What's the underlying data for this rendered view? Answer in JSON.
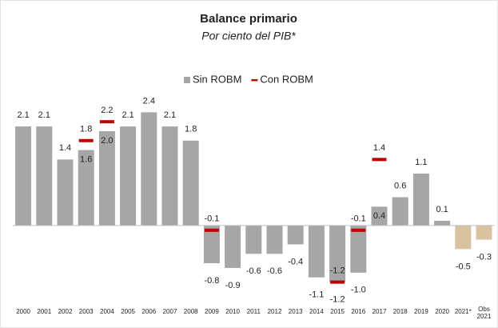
{
  "chart_data": {
    "type": "bar",
    "title": "Balance primario",
    "subtitle": "Por ciento del PIB*",
    "categories": [
      "2000",
      "2001",
      "2002",
      "2003",
      "2004",
      "2005",
      "2006",
      "2007",
      "2008",
      "2009",
      "2010",
      "2011",
      "2012",
      "2013",
      "2014",
      "2015",
      "2016",
      "2017",
      "2018",
      "2019",
      "2020",
      "2021*",
      "Obs 2021"
    ],
    "ylim": [
      -1.8,
      3.0
    ],
    "legend": "top",
    "series": [
      {
        "name": "Sin ROBM",
        "color": "#a6a6a6",
        "colors": [
          "#a6a6a6",
          "#a6a6a6",
          "#a6a6a6",
          "#a6a6a6",
          "#a6a6a6",
          "#a6a6a6",
          "#a6a6a6",
          "#a6a6a6",
          "#a6a6a6",
          "#a6a6a6",
          "#a6a6a6",
          "#a6a6a6",
          "#a6a6a6",
          "#a6a6a6",
          "#a6a6a6",
          "#a6a6a6",
          "#a6a6a6",
          "#a6a6a6",
          "#a6a6a6",
          "#a6a6a6",
          "#a6a6a6",
          "#d8c29f",
          "#d8c29f"
        ],
        "values": [
          2.1,
          2.1,
          1.4,
          1.6,
          2.0,
          2.1,
          2.4,
          2.1,
          1.8,
          -0.8,
          -0.9,
          -0.6,
          -0.6,
          -0.4,
          -1.1,
          -1.2,
          -1.0,
          0.4,
          0.6,
          1.1,
          0.1,
          -0.5,
          -0.3
        ],
        "value_labels": [
          "2.1",
          "2.1",
          "1.4",
          "1.6",
          "2.0",
          "2.1",
          "2.4",
          "2.1",
          "1.8",
          "-0.8",
          "-0.9",
          "-0.6",
          "-0.6",
          "-0.4",
          "-1.1",
          "-1.2",
          "-1.0",
          "0.4",
          "0.6",
          "1.1",
          "0.1",
          "-0.5",
          "-0.3"
        ]
      },
      {
        "name": "Con ROBM",
        "color": "#c00000",
        "marker": "dash",
        "values": [
          null,
          null,
          null,
          1.8,
          2.2,
          null,
          null,
          null,
          null,
          -0.1,
          null,
          null,
          null,
          null,
          null,
          -1.2,
          -0.1,
          1.4,
          null,
          null,
          null,
          null,
          null
        ],
        "value_labels": [
          null,
          null,
          null,
          "1.8",
          "2.2",
          null,
          null,
          null,
          null,
          "-0.1",
          null,
          null,
          null,
          null,
          null,
          "-1.2",
          "-0.1",
          "1.4",
          null,
          null,
          null,
          null,
          null
        ]
      }
    ]
  }
}
